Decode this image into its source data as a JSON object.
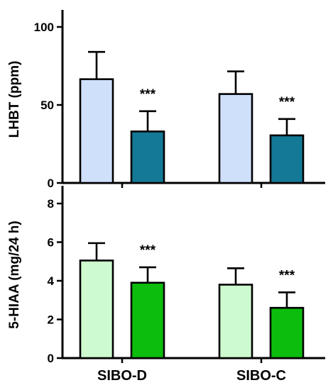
{
  "chart_data": [
    {
      "type": "bar",
      "ylabel": "LHBT (ppm)",
      "ylim": [
        0,
        100
      ],
      "yticks": [
        0,
        50,
        100
      ],
      "categories": [
        "SIBO-D",
        "SIBO-C"
      ],
      "series": [
        {
          "values": [
            66.5,
            57
          ],
          "errors": [
            17.5,
            14.5
          ],
          "fill": "#cfe0fb"
        },
        {
          "values": [
            33,
            30.5
          ],
          "errors": [
            13,
            10.5
          ],
          "fill": "#137996"
        }
      ],
      "annotations": [
        {
          "category_index": 0,
          "series_index": 1,
          "text": "***"
        },
        {
          "category_index": 1,
          "series_index": 1,
          "text": "***"
        }
      ],
      "grid": false
    },
    {
      "type": "bar",
      "ylabel": "5-HIAA (mg/24 h)",
      "ylim": [
        0,
        8
      ],
      "yticks": [
        0,
        2,
        4,
        6,
        8
      ],
      "categories": [
        "SIBO-D",
        "SIBO-C"
      ],
      "category_labels_shown": true,
      "series": [
        {
          "values": [
            5.05,
            3.8
          ],
          "errors": [
            0.9,
            0.85
          ],
          "fill": "#cdfbcf"
        },
        {
          "values": [
            3.9,
            2.6
          ],
          "errors": [
            0.8,
            0.8
          ],
          "fill": "#0dbd0d"
        }
      ],
      "annotations": [
        {
          "category_index": 0,
          "series_index": 1,
          "text": "***"
        },
        {
          "category_index": 1,
          "series_index": 1,
          "text": "***"
        }
      ],
      "grid": false
    }
  ]
}
